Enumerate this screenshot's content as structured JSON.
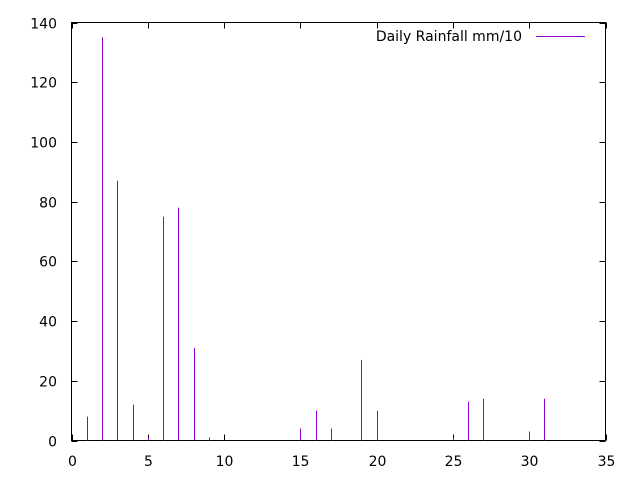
{
  "chart_data": {
    "type": "impulse",
    "title": "",
    "xlabel": "",
    "ylabel": "",
    "xlim": [
      0,
      35
    ],
    "ylim": [
      0,
      140
    ],
    "xticks": [
      0,
      5,
      10,
      15,
      20,
      25,
      30,
      35
    ],
    "yticks": [
      0,
      20,
      40,
      60,
      80,
      100,
      120,
      140
    ],
    "grid": false,
    "legend_position": "top-right",
    "series": [
      {
        "name": "Daily Rainfall mm/10",
        "color": "#9400d3",
        "points": [
          {
            "x": 1,
            "y": 8
          },
          {
            "x": 2,
            "y": 135
          },
          {
            "x": 3,
            "y": 87
          },
          {
            "x": 4,
            "y": 12
          },
          {
            "x": 5,
            "y": 1
          },
          {
            "x": 6,
            "y": 75
          },
          {
            "x": 7,
            "y": 78
          },
          {
            "x": 8,
            "y": 31
          },
          {
            "x": 9,
            "y": 1
          },
          {
            "x": 15,
            "y": 4
          },
          {
            "x": 16,
            "y": 10
          },
          {
            "x": 17,
            "y": 4
          },
          {
            "x": 19,
            "y": 27
          },
          {
            "x": 20,
            "y": 10
          },
          {
            "x": 25,
            "y": 1
          },
          {
            "x": 26,
            "y": 13
          },
          {
            "x": 27,
            "y": 14
          },
          {
            "x": 30,
            "y": 3
          },
          {
            "x": 31,
            "y": 14
          }
        ]
      }
    ]
  }
}
